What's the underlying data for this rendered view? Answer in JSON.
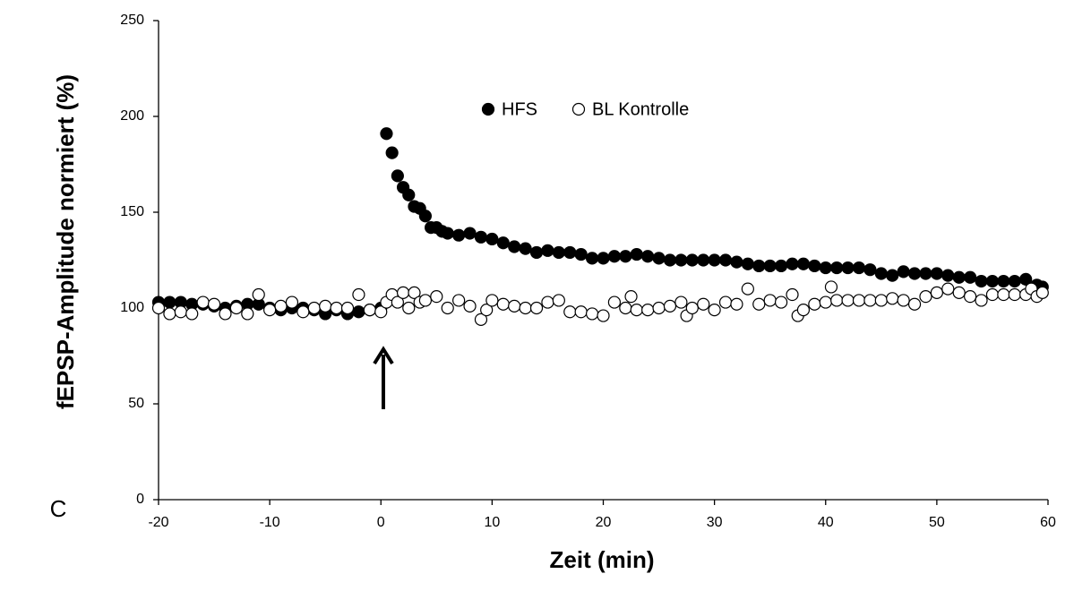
{
  "chart_data": {
    "type": "scatter",
    "xlabel": "Zeit (min)",
    "ylabel": "fEPSP-Amplitude normiert (%)",
    "panel_label": "C",
    "xlim": [
      -20,
      60
    ],
    "xticks": [
      -20,
      -10,
      0,
      10,
      20,
      30,
      40,
      50,
      60
    ],
    "ylim": [
      0,
      250
    ],
    "yticks": [
      0,
      50,
      100,
      150,
      200,
      250
    ],
    "grid": false,
    "legend": "top",
    "series": [
      {
        "name": "HFS",
        "color": "#000000",
        "filled": true,
        "x": [
          -20,
          -19,
          -18,
          -17,
          -16,
          -15,
          -14,
          -13,
          -12,
          -11,
          -10,
          -9,
          -8,
          -7,
          -6,
          -5,
          -4,
          -3,
          -2,
          -1,
          0,
          0.5,
          1,
          1.5,
          2,
          2.5,
          3,
          3.5,
          4,
          4.5,
          5,
          5.5,
          6,
          7,
          8,
          9,
          10,
          11,
          12,
          13,
          14,
          15,
          16,
          17,
          18,
          19,
          20,
          21,
          22,
          23,
          24,
          25,
          26,
          27,
          28,
          29,
          30,
          31,
          32,
          33,
          34,
          35,
          36,
          37,
          38,
          39,
          40,
          41,
          42,
          43,
          44,
          45,
          46,
          47,
          48,
          49,
          50,
          51,
          52,
          53,
          54,
          55,
          56,
          57,
          58,
          59,
          59.5
        ],
        "values": [
          103,
          103,
          103,
          102,
          102,
          101,
          100,
          101,
          102,
          102,
          100,
          99,
          100,
          100,
          99,
          97,
          99,
          97,
          98,
          99,
          100,
          191,
          181,
          169,
          163,
          159,
          153,
          152,
          148,
          142,
          142,
          140,
          139,
          138,
          139,
          137,
          136,
          134,
          132,
          131,
          129,
          130,
          129,
          129,
          128,
          126,
          126,
          127,
          127,
          128,
          127,
          126,
          125,
          125,
          125,
          125,
          125,
          125,
          124,
          123,
          122,
          122,
          122,
          123,
          123,
          122,
          121,
          121,
          121,
          121,
          120,
          118,
          117,
          119,
          118,
          118,
          118,
          117,
          116,
          116,
          114,
          114,
          114,
          114,
          115,
          112,
          111
        ]
      },
      {
        "name": "BL Kontrolle",
        "color": "#000000",
        "filled": false,
        "x": [
          -20,
          -19,
          -18,
          -17,
          -16,
          -15,
          -14,
          -13,
          -12,
          -11,
          -10,
          -9,
          -8,
          -7,
          -6,
          -5,
          -4,
          -3,
          -2,
          -1,
          0,
          0.5,
          1,
          1.5,
          2,
          2.5,
          3,
          3.5,
          4,
          5,
          6,
          7,
          8,
          9,
          9.5,
          10,
          11,
          12,
          13,
          14,
          15,
          16,
          17,
          18,
          19,
          20,
          21,
          22,
          22.5,
          23,
          24,
          25,
          26,
          27,
          27.5,
          28,
          29,
          30,
          31,
          32,
          33,
          34,
          35,
          36,
          37,
          37.5,
          38,
          39,
          40,
          40.5,
          41,
          42,
          43,
          44,
          45,
          46,
          47,
          48,
          49,
          50,
          51,
          52,
          53,
          54,
          55,
          56,
          57,
          58,
          58.5,
          59,
          59.5
        ],
        "values": [
          100,
          97,
          98,
          97,
          103,
          102,
          97,
          100,
          97,
          107,
          99,
          101,
          103,
          98,
          100,
          101,
          100,
          100,
          107,
          99,
          98,
          103,
          107,
          103,
          108,
          100,
          108,
          103,
          104,
          106,
          100,
          104,
          101,
          94,
          99,
          104,
          102,
          101,
          100,
          100,
          103,
          104,
          98,
          98,
          97,
          96,
          103,
          100,
          106,
          99,
          99,
          100,
          101,
          103,
          96,
          100,
          102,
          99,
          103,
          102,
          110,
          102,
          104,
          103,
          107,
          96,
          99,
          102,
          103,
          111,
          104,
          104,
          104,
          104,
          104,
          105,
          104,
          102,
          106,
          108,
          110,
          108,
          106,
          104,
          107,
          107,
          107,
          107,
          110,
          106,
          108
        ]
      }
    ]
  }
}
